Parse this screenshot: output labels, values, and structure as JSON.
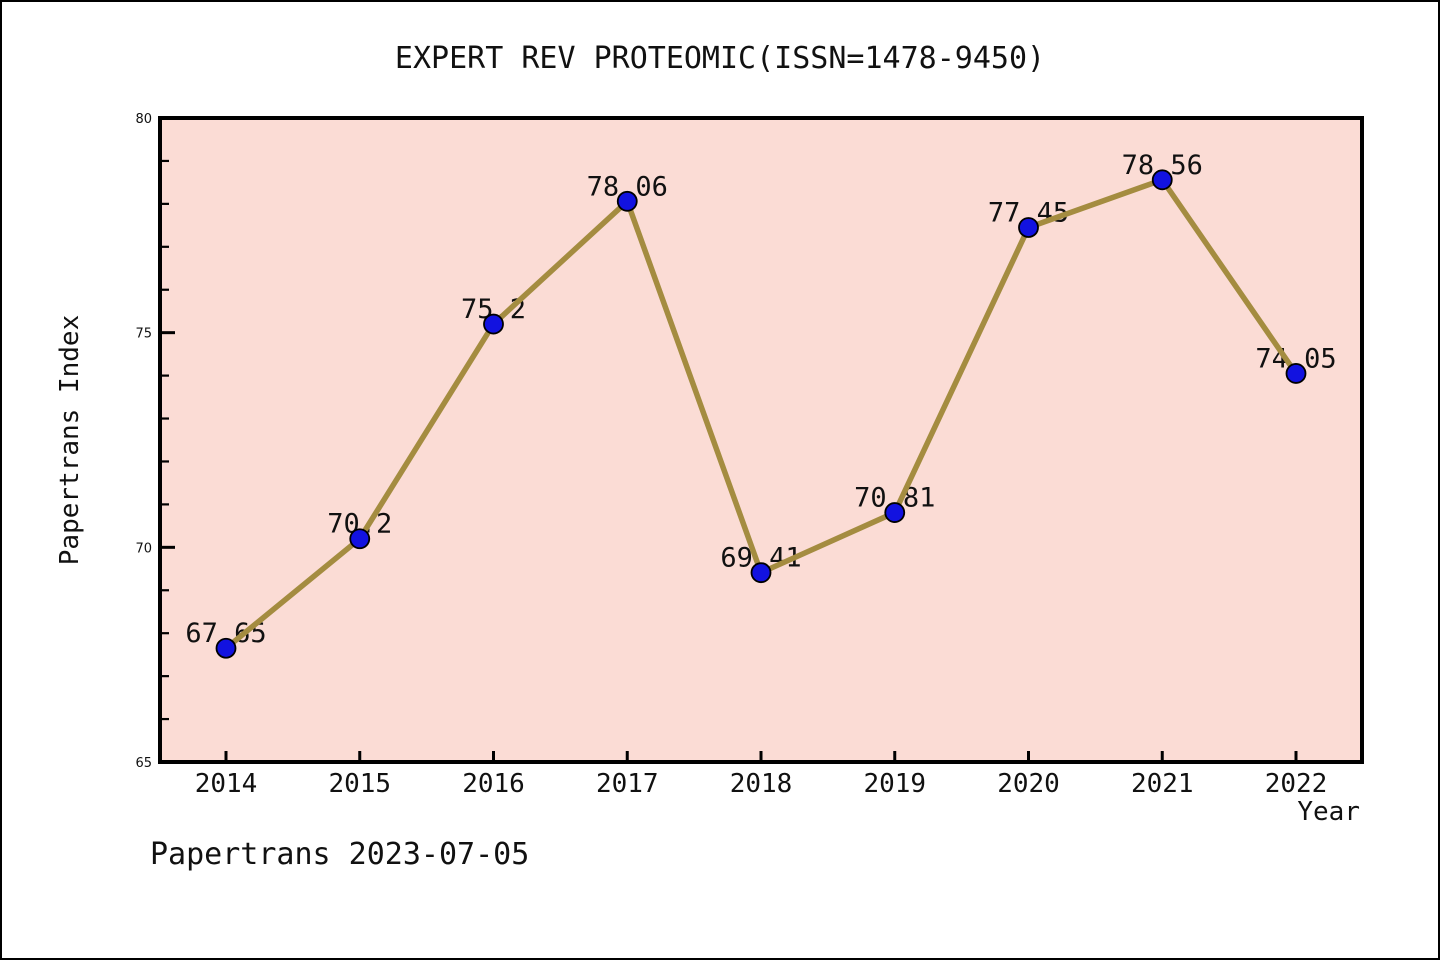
{
  "title": "EXPERT REV PROTEOMIC(ISSN=1478-9450)",
  "footer": "Papertrans 2023-07-05",
  "chart_data": {
    "type": "line",
    "x": [
      "2014",
      "2015",
      "2016",
      "2017",
      "2018",
      "2019",
      "2020",
      "2021",
      "2022"
    ],
    "values": [
      67.65,
      70.2,
      75.2,
      78.06,
      69.41,
      70.81,
      77.45,
      78.56,
      74.05
    ],
    "point_labels": [
      "67.65",
      "70.2",
      "75.2",
      "78.06",
      "69.41",
      "70.81",
      "77.45",
      "78.56",
      "74.05"
    ],
    "title": "EXPERT REV PROTEOMIC(ISSN=1478-9450)",
    "xlabel": "Year",
    "ylabel": "Papertrans Index",
    "ylim": [
      65,
      80
    ],
    "yticks": [
      65,
      70,
      75,
      80
    ],
    "y_minor_step": 1,
    "grid": false,
    "legend": null,
    "annotation": "Papertrans 2023-07-05",
    "colors": {
      "line": "#a48c40",
      "marker": "#1212e0",
      "marker_edge": "#000000",
      "plot_bg": "#fbdcd5",
      "figure_bg": "#ffffff",
      "axis": "#000000",
      "text": "#111111"
    }
  }
}
